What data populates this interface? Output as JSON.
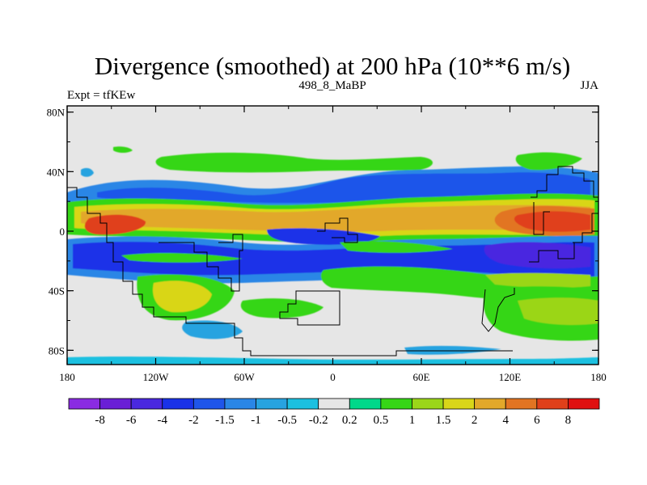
{
  "chart_data": {
    "type": "heatmap",
    "title": "Divergence (smoothed) at 200 hPa (10**6 m/s)",
    "left_label": "Expt = tfKEw",
    "center_label": "498_8_MaBP",
    "right_label": "JJA",
    "x_ticks": [
      "180",
      "120W",
      "60W",
      "0",
      "60E",
      "120E",
      "180"
    ],
    "y_ticks": [
      "80N",
      "40N",
      "0",
      "40S",
      "80S"
    ],
    "xlim": [
      -180,
      180
    ],
    "ylim": [
      -90,
      90
    ],
    "colorbar": {
      "labels": [
        "-8",
        "-6",
        "-4",
        "-2",
        "-1.5",
        "-1",
        "-0.5",
        "-0.2",
        "0.2",
        "0.5",
        "1",
        "1.5",
        "2",
        "4",
        "6",
        "8"
      ],
      "colors": [
        "#8a2be2",
        "#6a1fd6",
        "#4a28e0",
        "#1a32e8",
        "#1f55ea",
        "#2a86e6",
        "#27a3e0",
        "#1cc0e0",
        "#e6e6e6",
        "#00d88a",
        "#36d616",
        "#9bd619",
        "#d9d619",
        "#e2a82a",
        "#e27422",
        "#e0401a",
        "#e01010"
      ]
    },
    "bands": [
      {
        "name": "north mid-lat green",
        "lat_center": 46,
        "level": "0.5"
      },
      {
        "name": "subtropical blue",
        "lat_center": 24,
        "level": "-1"
      },
      {
        "name": "northern tropical orange",
        "lat_center": 8,
        "level": "2"
      },
      {
        "name": "equatorial blue",
        "lat_center": -16,
        "level": "-2"
      },
      {
        "name": "southern subtropical green",
        "lat_center": -40,
        "level": "0.5"
      }
    ]
  }
}
